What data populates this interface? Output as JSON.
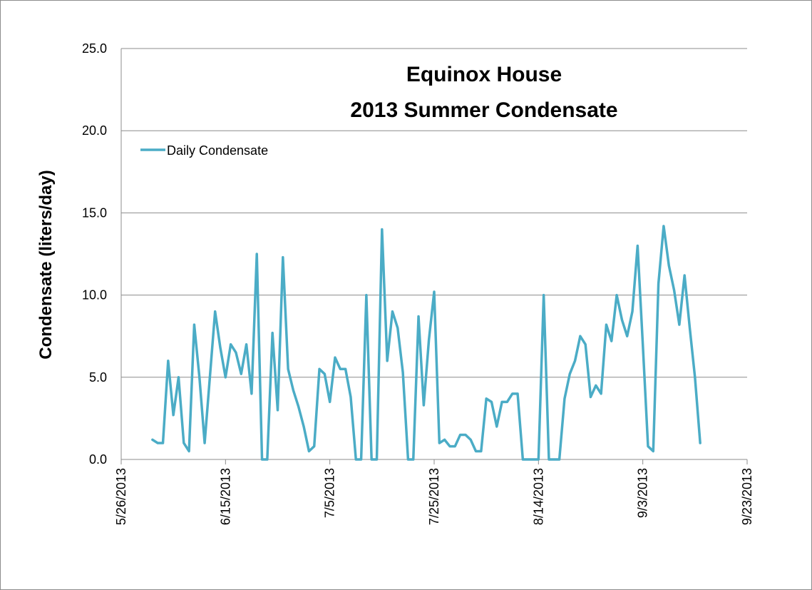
{
  "chart_data": {
    "type": "line",
    "title": [
      "Equinox House",
      "2013 Summer Condensate"
    ],
    "xlabel": "",
    "ylabel": "Condensate (liters/day)",
    "ylim": [
      0,
      25
    ],
    "yticks": [
      "0.0",
      "5.0",
      "10.0",
      "15.0",
      "20.0",
      "25.0"
    ],
    "xlim": [
      "2013-05-26",
      "2013-09-23"
    ],
    "xticks": [
      "5/26/2013",
      "6/15/2013",
      "7/5/2013",
      "7/25/2013",
      "8/14/2013",
      "9/3/2013",
      "9/23/2013"
    ],
    "grid": "horizontal",
    "legend_position": "top-left",
    "colors": {
      "series": "#4bacc6",
      "grid": "#8c8c8c",
      "axis": "#8c8c8c"
    },
    "series": [
      {
        "name": "Daily Condensate",
        "points": [
          [
            "2013-06-01",
            1.2
          ],
          [
            "2013-06-02",
            1.0
          ],
          [
            "2013-06-03",
            1.0
          ],
          [
            "2013-06-04",
            6.0
          ],
          [
            "2013-06-05",
            2.7
          ],
          [
            "2013-06-06",
            5.0
          ],
          [
            "2013-06-07",
            1.0
          ],
          [
            "2013-06-08",
            0.5
          ],
          [
            "2013-06-09",
            8.2
          ],
          [
            "2013-06-10",
            5.0
          ],
          [
            "2013-06-11",
            1.0
          ],
          [
            "2013-06-12",
            5.0
          ],
          [
            "2013-06-13",
            9.0
          ],
          [
            "2013-06-14",
            6.8
          ],
          [
            "2013-06-15",
            5.0
          ],
          [
            "2013-06-16",
            7.0
          ],
          [
            "2013-06-17",
            6.5
          ],
          [
            "2013-06-18",
            5.2
          ],
          [
            "2013-06-19",
            7.0
          ],
          [
            "2013-06-20",
            4.0
          ],
          [
            "2013-06-21",
            12.5
          ],
          [
            "2013-06-22",
            0.0
          ],
          [
            "2013-06-23",
            0.0
          ],
          [
            "2013-06-24",
            7.7
          ],
          [
            "2013-06-25",
            3.0
          ],
          [
            "2013-06-26",
            12.3
          ],
          [
            "2013-06-27",
            5.5
          ],
          [
            "2013-06-28",
            4.2
          ],
          [
            "2013-06-29",
            3.2
          ],
          [
            "2013-06-30",
            2.0
          ],
          [
            "2013-07-01",
            0.5
          ],
          [
            "2013-07-02",
            0.8
          ],
          [
            "2013-07-03",
            5.5
          ],
          [
            "2013-07-04",
            5.2
          ],
          [
            "2013-07-05",
            3.5
          ],
          [
            "2013-07-06",
            6.2
          ],
          [
            "2013-07-07",
            5.5
          ],
          [
            "2013-07-08",
            5.5
          ],
          [
            "2013-07-09",
            3.8
          ],
          [
            "2013-07-10",
            0.0
          ],
          [
            "2013-07-11",
            0.0
          ],
          [
            "2013-07-12",
            10.0
          ],
          [
            "2013-07-13",
            0.0
          ],
          [
            "2013-07-14",
            0.0
          ],
          [
            "2013-07-15",
            14.0
          ],
          [
            "2013-07-16",
            6.0
          ],
          [
            "2013-07-17",
            9.0
          ],
          [
            "2013-07-18",
            8.0
          ],
          [
            "2013-07-19",
            5.3
          ],
          [
            "2013-07-20",
            0.0
          ],
          [
            "2013-07-21",
            0.0
          ],
          [
            "2013-07-22",
            8.7
          ],
          [
            "2013-07-23",
            3.3
          ],
          [
            "2013-07-24",
            7.3
          ],
          [
            "2013-07-25",
            10.2
          ],
          [
            "2013-07-26",
            1.0
          ],
          [
            "2013-07-27",
            1.2
          ],
          [
            "2013-07-28",
            0.8
          ],
          [
            "2013-07-29",
            0.8
          ],
          [
            "2013-07-30",
            1.5
          ],
          [
            "2013-07-31",
            1.5
          ],
          [
            "2013-08-01",
            1.2
          ],
          [
            "2013-08-02",
            0.5
          ],
          [
            "2013-08-03",
            0.5
          ],
          [
            "2013-08-04",
            3.7
          ],
          [
            "2013-08-05",
            3.5
          ],
          [
            "2013-08-06",
            2.0
          ],
          [
            "2013-08-07",
            3.5
          ],
          [
            "2013-08-08",
            3.5
          ],
          [
            "2013-08-09",
            4.0
          ],
          [
            "2013-08-10",
            4.0
          ],
          [
            "2013-08-11",
            0.0
          ],
          [
            "2013-08-12",
            0.0
          ],
          [
            "2013-08-13",
            0.0
          ],
          [
            "2013-08-14",
            0.0
          ],
          [
            "2013-08-15",
            10.0
          ],
          [
            "2013-08-16",
            0.0
          ],
          [
            "2013-08-17",
            0.0
          ],
          [
            "2013-08-18",
            0.0
          ],
          [
            "2013-08-19",
            3.7
          ],
          [
            "2013-08-20",
            5.2
          ],
          [
            "2013-08-21",
            6.0
          ],
          [
            "2013-08-22",
            7.5
          ],
          [
            "2013-08-23",
            7.0
          ],
          [
            "2013-08-24",
            3.8
          ],
          [
            "2013-08-25",
            4.5
          ],
          [
            "2013-08-26",
            4.0
          ],
          [
            "2013-08-27",
            8.2
          ],
          [
            "2013-08-28",
            7.2
          ],
          [
            "2013-08-29",
            10.0
          ],
          [
            "2013-08-30",
            8.5
          ],
          [
            "2013-08-31",
            7.5
          ],
          [
            "2013-09-01",
            9.0
          ],
          [
            "2013-09-02",
            13.0
          ],
          [
            "2013-09-03",
            7.0
          ],
          [
            "2013-09-04",
            0.8
          ],
          [
            "2013-09-05",
            0.5
          ],
          [
            "2013-09-06",
            10.7
          ],
          [
            "2013-09-07",
            14.2
          ],
          [
            "2013-09-08",
            11.8
          ],
          [
            "2013-09-09",
            10.3
          ],
          [
            "2013-09-10",
            8.2
          ],
          [
            "2013-09-11",
            11.2
          ],
          [
            "2013-09-12",
            8.0
          ],
          [
            "2013-09-13",
            5.0
          ],
          [
            "2013-09-14",
            1.0
          ]
        ]
      }
    ]
  }
}
